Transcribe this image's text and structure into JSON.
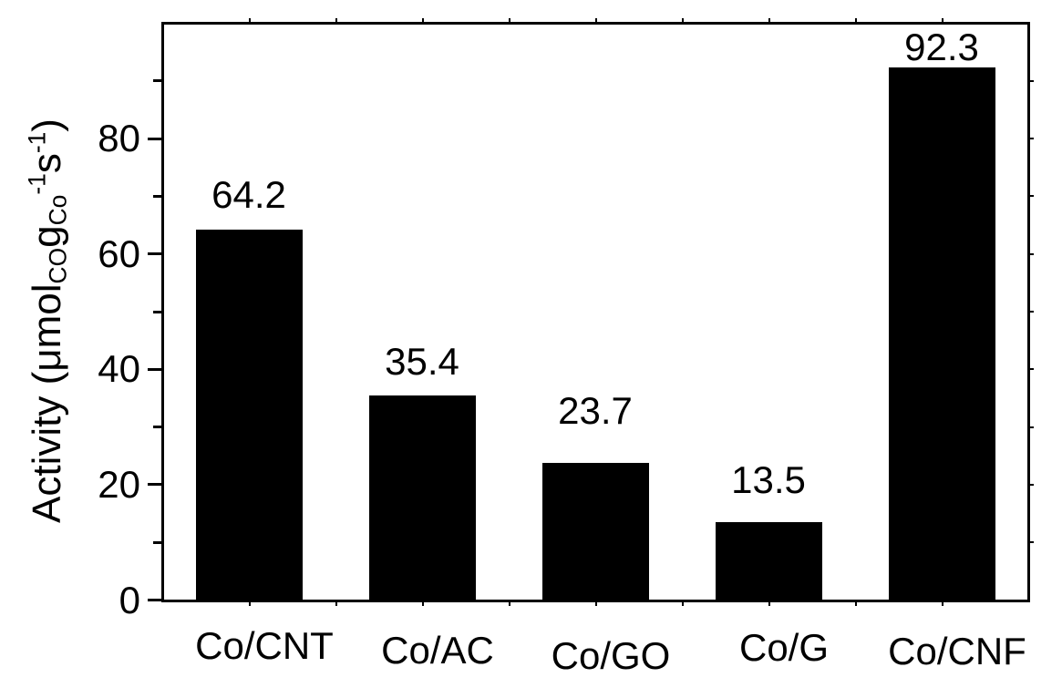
{
  "chart_data": {
    "type": "bar",
    "title": "",
    "categories": [
      "Co/CNT",
      "Co/AC",
      "Co/GO",
      "Co/G",
      "Co/CNF"
    ],
    "values": [
      64.2,
      35.4,
      23.7,
      13.5,
      92.3
    ],
    "bar_labels": [
      "64.2",
      "35.4",
      "23.7",
      "13.5",
      "92.3"
    ],
    "ylabel_plain": "Activity (μmol_CO g_Co^-1 s^-1)",
    "ylabel_rich": [
      {
        "text": "Activity (μmol",
        "style": "normal"
      },
      {
        "text": "CO",
        "style": "sub"
      },
      {
        "text": "g",
        "style": "normal"
      },
      {
        "text": "Co",
        "style": "sub"
      },
      {
        "text": "-1",
        "style": "sup"
      },
      {
        "text": "s",
        "style": "normal"
      },
      {
        "text": "-1",
        "style": "sup"
      },
      {
        "text": ")",
        "style": "normal"
      }
    ],
    "xlabel": "",
    "yticks_major": [
      0,
      20,
      40,
      60,
      80
    ],
    "yticks_minor": [
      10,
      30,
      50,
      70,
      90
    ],
    "ylim": [
      0,
      100
    ],
    "grid": false,
    "legend": "none",
    "bar_color": "#000000",
    "axis_color": "#000000",
    "background_color": "#ffffff",
    "value_label_color": "#000000"
  }
}
